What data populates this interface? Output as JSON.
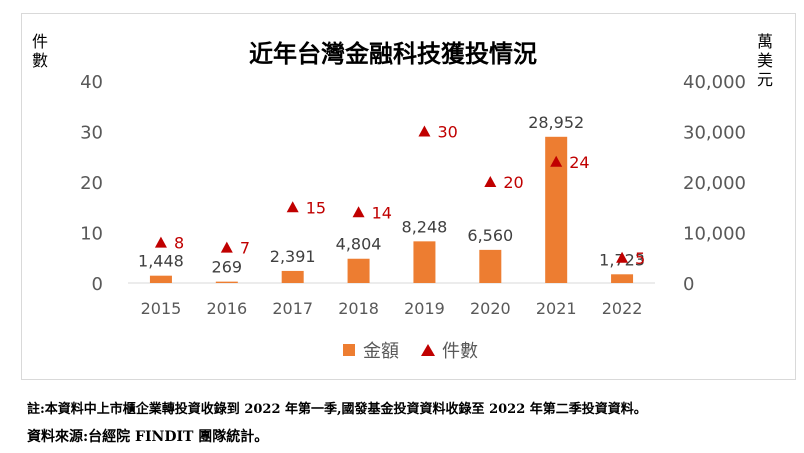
{
  "chart_data": {
    "type": "bar",
    "title": "近年台灣金融科技獲投情況",
    "categories": [
      "2015",
      "2016",
      "2017",
      "2018",
      "2019",
      "2020",
      "2021",
      "2022"
    ],
    "series": [
      {
        "name": "金額",
        "kind": "bar",
        "axis": "right",
        "color": "#ED7D31",
        "values": [
          1448,
          269,
          2391,
          4804,
          8248,
          6560,
          28952,
          1723
        ],
        "labels": [
          "1,448",
          "269",
          "2,391",
          "4,804",
          "8,248",
          "6,560",
          "28,952",
          "1,723"
        ]
      },
      {
        "name": "件數",
        "kind": "marker",
        "marker": "triangle",
        "axis": "left",
        "color": "#C00000",
        "values": [
          8,
          7,
          15,
          14,
          30,
          20,
          24,
          5
        ],
        "labels": [
          "8",
          "7",
          "15",
          "14",
          "30",
          "20",
          "24",
          "5"
        ]
      }
    ],
    "y_left": {
      "label": "件數",
      "range": [
        0,
        40
      ],
      "ticks": [
        "0",
        "10",
        "20",
        "30",
        "40"
      ]
    },
    "y_right": {
      "label": "萬美元",
      "range": [
        0,
        40000
      ],
      "ticks": [
        "0",
        "10,000",
        "20,000",
        "30,000",
        "40,000"
      ]
    },
    "grid": false,
    "legend_position": "bottom"
  },
  "footnote": "註:本資料中上市櫃企業轉投資收錄到 2022 年第一季,國發基金投資資料收錄至 2022 年第二季投資資料。",
  "source": "資料來源:台經院 FINDIT 團隊統計。"
}
